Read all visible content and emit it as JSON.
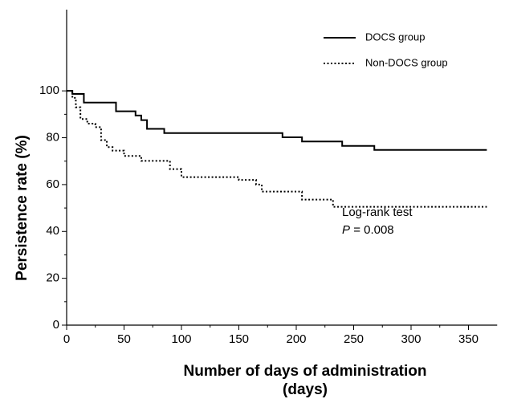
{
  "chart_data": {
    "type": "step",
    "xlabel": [
      "Number of days of administration",
      "(days)"
    ],
    "ylabel": "Persistence rate (%)",
    "xlim": [
      0,
      375
    ],
    "ylim": [
      0,
      110
    ],
    "xticks": [
      0,
      50,
      100,
      150,
      200,
      250,
      300,
      350
    ],
    "yticks": [
      0,
      20,
      40,
      60,
      80,
      100
    ],
    "legend": "top-right",
    "series": [
      {
        "name": "DOCS group",
        "color": "#000000",
        "dash": "solid",
        "x": [
          0,
          5,
          15,
          43,
          60,
          65,
          70,
          85,
          188,
          205,
          240,
          268,
          366
        ],
        "values": [
          100,
          98.7,
          95,
          91.3,
          89.5,
          87.5,
          83.8,
          82,
          80.2,
          78.4,
          76.5,
          74.8,
          74.8
        ]
      },
      {
        "name": "Non-DOCS group",
        "color": "#000000",
        "dash": "dotted",
        "x": [
          0,
          5,
          8,
          12,
          18,
          25,
          30,
          35,
          40,
          50,
          65,
          90,
          100,
          150,
          165,
          170,
          205,
          232,
          366
        ],
        "values": [
          100,
          97,
          93,
          88,
          86,
          84.5,
          79,
          76,
          74.5,
          72.2,
          70.1,
          66.6,
          63.2,
          62,
          60,
          57,
          53.6,
          50.5,
          50.5
        ]
      }
    ],
    "annotations": [
      "Log-rank test",
      "P",
      "= 0.008"
    ]
  }
}
